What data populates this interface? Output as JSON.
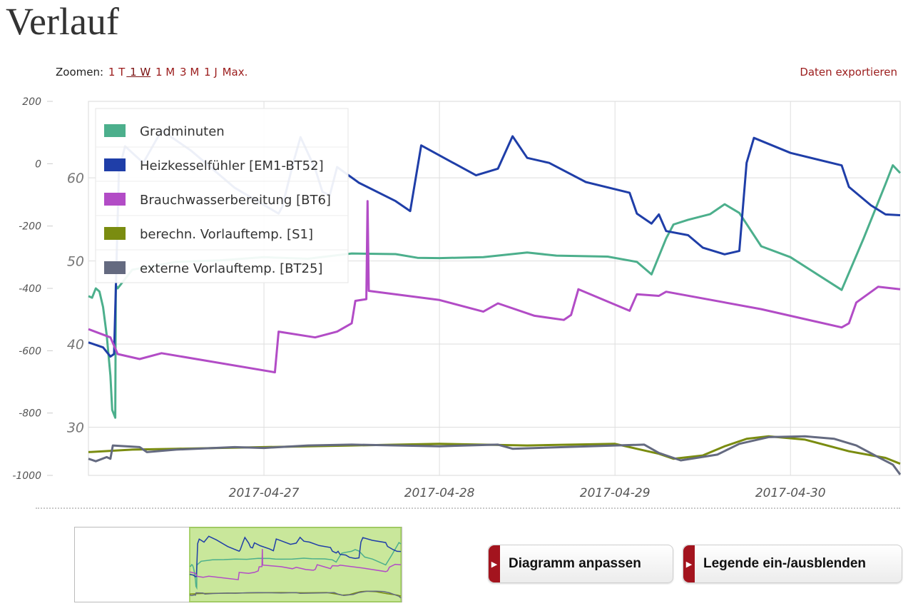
{
  "page": {
    "title": "Verlauf"
  },
  "toolbar": {
    "zoom_label": "Zoomen:",
    "zoom_options": [
      "1 T",
      "1 W",
      "1 M",
      "3 M",
      "1 J",
      "Max."
    ],
    "zoom_active": "1 W",
    "export_label": "Daten exportieren"
  },
  "buttons": {
    "adjust_label": "Diagramm anpassen",
    "legend_label": "Legende ein-/ausblenden"
  },
  "colors": {
    "gradminuten": "#4caf8c",
    "heizkessel": "#1f3ea8",
    "brauchwasser": "#b24cc6",
    "vorlauf_berechn": "#7a8c10",
    "vorlauf_extern": "#646a80",
    "navigator_fill": "#b8e07a",
    "accent": "#a3141e"
  },
  "chart_data": {
    "type": "line",
    "x_ticks": [
      "2017-04-27",
      "2017-04-28",
      "2017-04-29",
      "2017-04-30"
    ],
    "xlim": [
      "2017-04-26T00:00",
      "2017-04-30T15:00"
    ],
    "y_left": {
      "ticks": [
        200,
        0,
        -200,
        -400,
        -600,
        -800,
        -1000
      ],
      "ylim": [
        -1000,
        200
      ]
    },
    "y_right": {
      "ticks": [
        60,
        50,
        40,
        30
      ],
      "ylim": [
        24.2,
        69.2
      ]
    },
    "legend_position": "top-left",
    "grid": true,
    "series": [
      {
        "name": "Gradminuten",
        "axis": "left",
        "color_key": "gradminuten",
        "points": [
          [
            "2017-04-26T00:00",
            -425
          ],
          [
            "2017-04-26T00:30",
            -430
          ],
          [
            "2017-04-26T01:00",
            -400
          ],
          [
            "2017-04-26T01:30",
            -410
          ],
          [
            "2017-04-26T02:00",
            -460
          ],
          [
            "2017-04-26T02:30",
            -550
          ],
          [
            "2017-04-26T03:00",
            -680
          ],
          [
            "2017-04-26T03:15",
            -790
          ],
          [
            "2017-04-26T03:40",
            -815
          ],
          [
            "2017-04-26T03:45",
            -390
          ],
          [
            "2017-04-26T04:00",
            -400
          ],
          [
            "2017-04-26T06:00",
            -340
          ],
          [
            "2017-04-26T12:00",
            -315
          ],
          [
            "2017-04-26T18:00",
            -310
          ],
          [
            "2017-04-27T00:00",
            -300
          ],
          [
            "2017-04-27T06:00",
            -305
          ],
          [
            "2017-04-27T12:00",
            -288
          ],
          [
            "2017-04-27T18:00",
            -290
          ],
          [
            "2017-04-27T21:00",
            -302
          ],
          [
            "2017-04-28T00:00",
            -303
          ],
          [
            "2017-04-28T06:00",
            -300
          ],
          [
            "2017-04-28T12:00",
            -285
          ],
          [
            "2017-04-28T16:00",
            -295
          ],
          [
            "2017-04-28T23:00",
            -298
          ],
          [
            "2017-04-29T03:00",
            -315
          ],
          [
            "2017-04-29T05:00",
            -355
          ],
          [
            "2017-04-29T07:00",
            -240
          ],
          [
            "2017-04-29T08:00",
            -195
          ],
          [
            "2017-04-29T10:00",
            -180
          ],
          [
            "2017-04-29T13:00",
            -162
          ],
          [
            "2017-04-29T15:00",
            -130
          ],
          [
            "2017-04-29T17:00",
            -158
          ],
          [
            "2017-04-29T20:00",
            -265
          ],
          [
            "2017-04-30T00:00",
            -300
          ],
          [
            "2017-04-30T03:00",
            -345
          ],
          [
            "2017-04-30T07:00",
            -405
          ],
          [
            "2017-04-30T10:00",
            -240
          ],
          [
            "2017-04-30T13:00",
            -65
          ],
          [
            "2017-04-30T14:00",
            -5
          ],
          [
            "2017-04-30T15:00",
            -30
          ]
        ]
      },
      {
        "name": "Heizkesselfühler [EM1-BT52]",
        "axis": "right",
        "color_key": "heizkessel",
        "points": [
          [
            "2017-04-26T00:00",
            40.2
          ],
          [
            "2017-04-26T02:00",
            39.6
          ],
          [
            "2017-04-26T03:00",
            38.5
          ],
          [
            "2017-04-26T03:30",
            38.8
          ],
          [
            "2017-04-26T03:45",
            46.7
          ],
          [
            "2017-04-26T04:10",
            60.8
          ],
          [
            "2017-04-26T05:00",
            63.8
          ],
          [
            "2017-04-26T07:30",
            61.8
          ],
          [
            "2017-04-26T10:00",
            65.7
          ],
          [
            "2017-04-26T14:00",
            63.3
          ],
          [
            "2017-04-26T20:00",
            58.8
          ],
          [
            "2017-04-27T02:00",
            55.7
          ],
          [
            "2017-04-27T02:30",
            56.5
          ],
          [
            "2017-04-27T04:00",
            61.8
          ],
          [
            "2017-04-27T05:00",
            64.9
          ],
          [
            "2017-04-27T07:00",
            61.1
          ],
          [
            "2017-04-27T08:00",
            58.3
          ],
          [
            "2017-04-27T09:00",
            57.9
          ],
          [
            "2017-04-27T10:00",
            61.3
          ],
          [
            "2017-04-27T13:00",
            59.4
          ],
          [
            "2017-04-27T18:00",
            57.2
          ],
          [
            "2017-04-27T20:00",
            56.0
          ],
          [
            "2017-04-27T21:30",
            63.9
          ],
          [
            "2017-04-28T00:00",
            62.7
          ],
          [
            "2017-04-28T05:00",
            60.3
          ],
          [
            "2017-04-28T08:00",
            61.1
          ],
          [
            "2017-04-28T10:00",
            65.0
          ],
          [
            "2017-04-28T12:00",
            62.4
          ],
          [
            "2017-04-28T15:00",
            61.8
          ],
          [
            "2017-04-28T20:00",
            59.5
          ],
          [
            "2017-04-29T02:00",
            58.2
          ],
          [
            "2017-04-29T03:00",
            55.7
          ],
          [
            "2017-04-29T05:00",
            54.5
          ],
          [
            "2017-04-29T06:00",
            55.6
          ],
          [
            "2017-04-29T07:00",
            53.6
          ],
          [
            "2017-04-29T10:00",
            53.1
          ],
          [
            "2017-04-29T12:00",
            51.6
          ],
          [
            "2017-04-29T15:00",
            50.8
          ],
          [
            "2017-04-29T17:00",
            51.2
          ],
          [
            "2017-04-29T18:00",
            61.8
          ],
          [
            "2017-04-29T19:00",
            64.8
          ],
          [
            "2017-04-30T00:00",
            63.0
          ],
          [
            "2017-04-30T07:00",
            61.5
          ],
          [
            "2017-04-30T08:00",
            58.9
          ],
          [
            "2017-04-30T11:00",
            56.7
          ],
          [
            "2017-04-30T13:00",
            55.6
          ],
          [
            "2017-04-30T15:00",
            55.5
          ]
        ]
      },
      {
        "name": "Brauchwasserbereitung [BT6]",
        "axis": "right",
        "color_key": "brauchwasser",
        "points": [
          [
            "2017-04-26T00:00",
            41.8
          ],
          [
            "2017-04-26T03:00",
            40.8
          ],
          [
            "2017-04-26T04:00",
            38.8
          ],
          [
            "2017-04-26T07:00",
            38.2
          ],
          [
            "2017-04-26T10:00",
            38.9
          ],
          [
            "2017-04-27T01:30",
            36.6
          ],
          [
            "2017-04-27T02:00",
            41.5
          ],
          [
            "2017-04-27T07:00",
            40.8
          ],
          [
            "2017-04-27T10:00",
            41.5
          ],
          [
            "2017-04-27T12:00",
            42.5
          ],
          [
            "2017-04-27T12:30",
            45.2
          ],
          [
            "2017-04-27T14:00",
            45.4
          ],
          [
            "2017-04-27T14:10",
            57.2
          ],
          [
            "2017-04-27T14:20",
            46.4
          ],
          [
            "2017-04-28T00:00",
            45.3
          ],
          [
            "2017-04-28T06:00",
            43.9
          ],
          [
            "2017-04-28T08:00",
            44.9
          ],
          [
            "2017-04-28T13:00",
            43.4
          ],
          [
            "2017-04-28T17:00",
            42.9
          ],
          [
            "2017-04-28T18:00",
            43.5
          ],
          [
            "2017-04-28T19:00",
            46.6
          ],
          [
            "2017-04-29T02:00",
            44.0
          ],
          [
            "2017-04-29T03:00",
            46.0
          ],
          [
            "2017-04-29T06:00",
            45.8
          ],
          [
            "2017-04-29T07:00",
            46.3
          ],
          [
            "2017-04-29T20:00",
            44.2
          ],
          [
            "2017-04-30T07:00",
            42.0
          ],
          [
            "2017-04-30T08:00",
            42.5
          ],
          [
            "2017-04-30T09:00",
            45.0
          ],
          [
            "2017-04-30T12:00",
            46.9
          ],
          [
            "2017-04-30T15:00",
            46.6
          ]
        ]
      },
      {
        "name": "berechn. Vorlauftemp. [S1]",
        "axis": "right",
        "color_key": "vorlauf_berechn",
        "points": [
          [
            "2017-04-26T00:00",
            27.0
          ],
          [
            "2017-04-26T06:00",
            27.3
          ],
          [
            "2017-04-26T12:00",
            27.4
          ],
          [
            "2017-04-27T00:00",
            27.6
          ],
          [
            "2017-04-27T12:00",
            27.8
          ],
          [
            "2017-04-28T00:00",
            28.0
          ],
          [
            "2017-04-28T12:00",
            27.8
          ],
          [
            "2017-04-29T00:00",
            28.0
          ],
          [
            "2017-04-29T06:00",
            26.8
          ],
          [
            "2017-04-29T08:00",
            26.2
          ],
          [
            "2017-04-29T12:00",
            26.6
          ],
          [
            "2017-04-29T15:00",
            27.7
          ],
          [
            "2017-04-29T18:00",
            28.6
          ],
          [
            "2017-04-29T21:00",
            28.9
          ],
          [
            "2017-04-30T02:00",
            28.5
          ],
          [
            "2017-04-30T08:00",
            27.1
          ],
          [
            "2017-04-30T13:00",
            26.3
          ],
          [
            "2017-04-30T15:00",
            25.6
          ]
        ]
      },
      {
        "name": "externe Vorlauftemp. [BT25]",
        "axis": "right",
        "color_key": "vorlauf_extern",
        "points": [
          [
            "2017-04-26T00:00",
            26.2
          ],
          [
            "2017-04-26T01:00",
            25.9
          ],
          [
            "2017-04-26T02:30",
            26.4
          ],
          [
            "2017-04-26T03:00",
            26.2
          ],
          [
            "2017-04-26T03:20",
            27.8
          ],
          [
            "2017-04-26T07:00",
            27.6
          ],
          [
            "2017-04-26T08:00",
            27.0
          ],
          [
            "2017-04-26T12:00",
            27.3
          ],
          [
            "2017-04-26T20:00",
            27.6
          ],
          [
            "2017-04-27T00:00",
            27.5
          ],
          [
            "2017-04-27T06:00",
            27.8
          ],
          [
            "2017-04-27T12:00",
            27.9
          ],
          [
            "2017-04-28T00:00",
            27.7
          ],
          [
            "2017-04-28T08:00",
            27.9
          ],
          [
            "2017-04-28T10:00",
            27.4
          ],
          [
            "2017-04-29T00:00",
            27.8
          ],
          [
            "2017-04-29T04:00",
            27.9
          ],
          [
            "2017-04-29T06:00",
            26.9
          ],
          [
            "2017-04-29T09:00",
            26.0
          ],
          [
            "2017-04-29T14:00",
            26.7
          ],
          [
            "2017-04-29T17:00",
            28.0
          ],
          [
            "2017-04-29T21:00",
            28.8
          ],
          [
            "2017-04-30T02:00",
            28.9
          ],
          [
            "2017-04-30T06:00",
            28.6
          ],
          [
            "2017-04-30T09:00",
            27.8
          ],
          [
            "2017-04-30T12:00",
            26.4
          ],
          [
            "2017-04-30T14:00",
            25.5
          ],
          [
            "2017-04-30T15:00",
            24.3
          ]
        ]
      }
    ]
  }
}
